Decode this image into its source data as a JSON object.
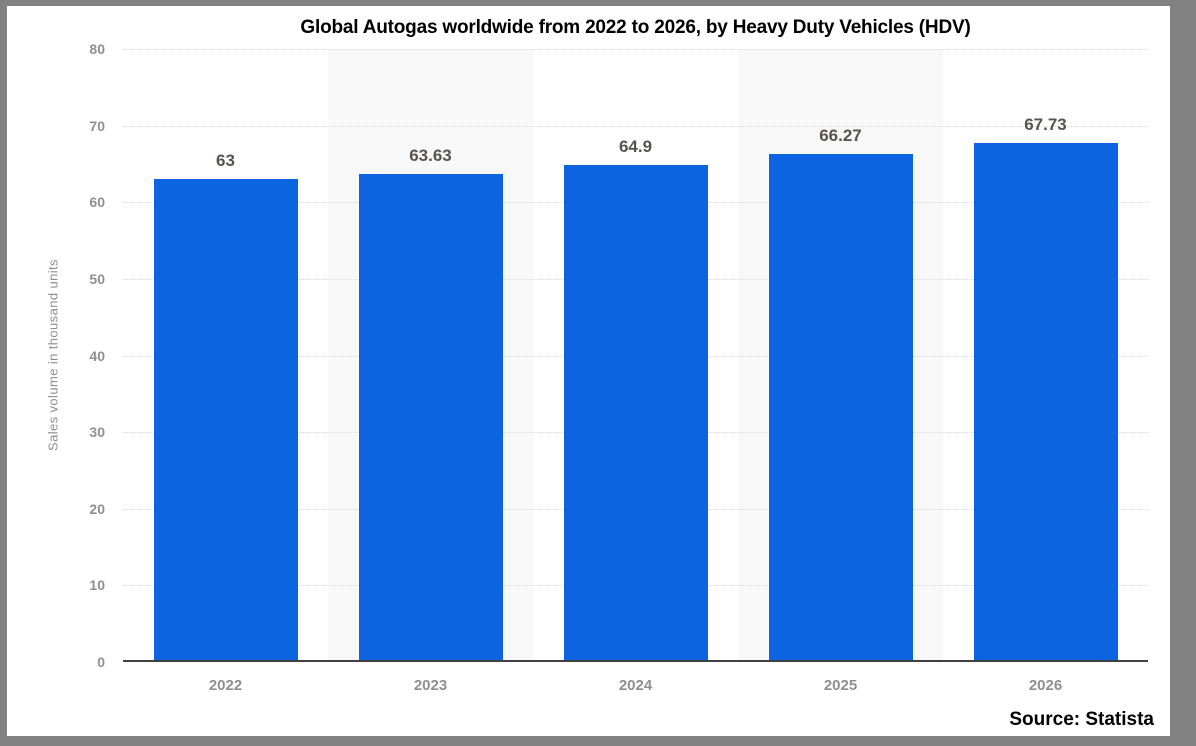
{
  "frame": {
    "border_color": "#818181",
    "background_color": "#ffffff"
  },
  "chart_data": {
    "type": "bar",
    "title": "Global Autogas worldwide from 2022 to 2026, by Heavy Duty Vehicles (HDV)",
    "categories": [
      "2022",
      "2023",
      "2024",
      "2025",
      "2026"
    ],
    "values": [
      63,
      63.63,
      64.9,
      66.27,
      67.73
    ],
    "value_labels": [
      "63",
      "63.63",
      "64.9",
      "66.27",
      "67.73"
    ],
    "xlabel": "",
    "ylabel": "Sales volume in thousand units",
    "ylim": [
      0,
      80
    ],
    "yticks": [
      0,
      10,
      20,
      30,
      40,
      50,
      60,
      70,
      80
    ],
    "grid": "horizontal-dotted",
    "legend": "none",
    "bar_color": "#0d64e1",
    "band_color": "#f8f8f8",
    "banded_columns": [
      1,
      3
    ],
    "value_label_color": "#575350",
    "tick_label_color": "#8f8f8f"
  },
  "source": {
    "label": "Source: Statista"
  }
}
